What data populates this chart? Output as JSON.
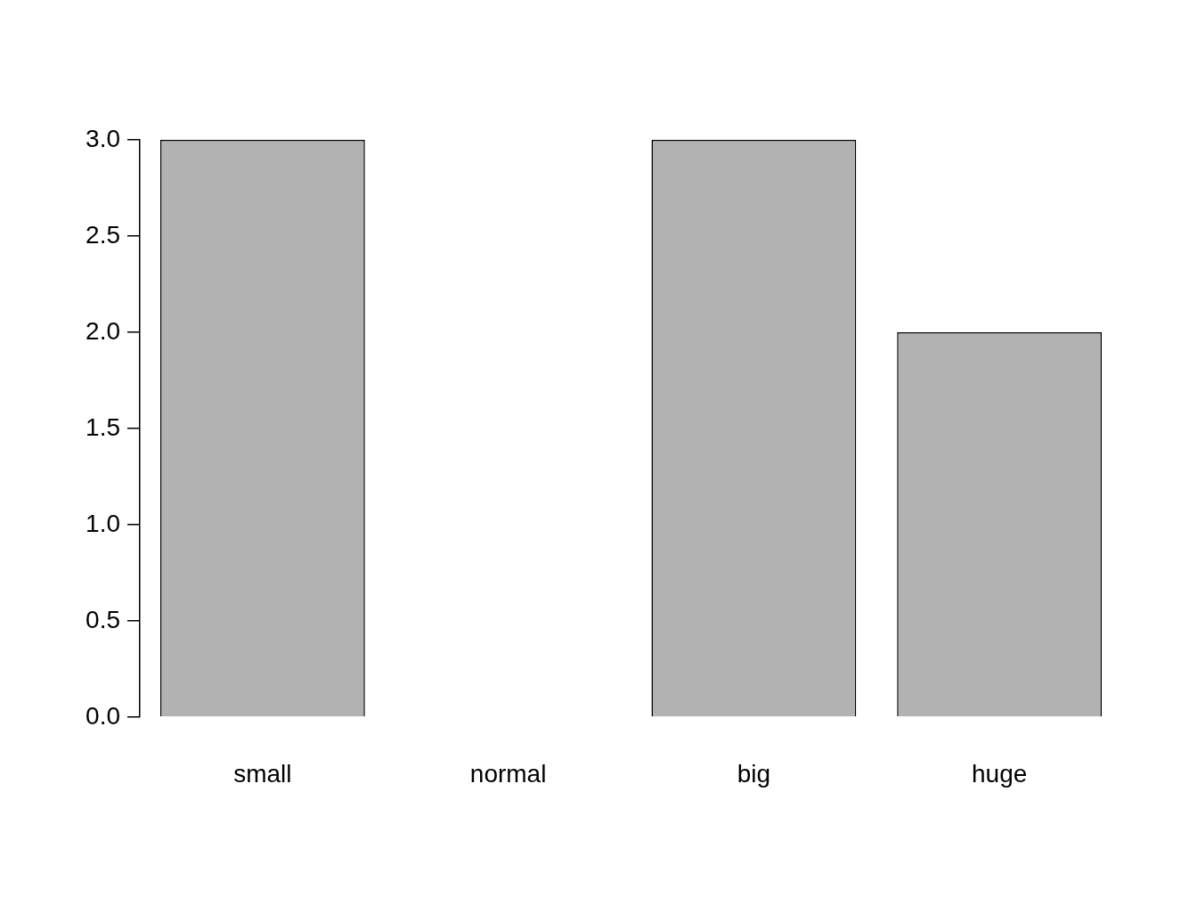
{
  "chart_data": {
    "type": "bar",
    "categories": [
      "small",
      "normal",
      "big",
      "huge"
    ],
    "values": [
      3,
      0,
      3,
      2
    ],
    "color": "#b2b2b2",
    "ylim": [
      0,
      3
    ],
    "yticks": [
      {
        "value": 0,
        "label": "0.0"
      },
      {
        "value": 0.5,
        "label": "0.5"
      },
      {
        "value": 1,
        "label": "1.0"
      },
      {
        "value": 1.5,
        "label": "1.5"
      },
      {
        "value": 2,
        "label": "2.0"
      },
      {
        "value": 2.5,
        "label": "2.5"
      },
      {
        "value": 3,
        "label": "3.0"
      }
    ],
    "grid": false,
    "legend": false
  }
}
